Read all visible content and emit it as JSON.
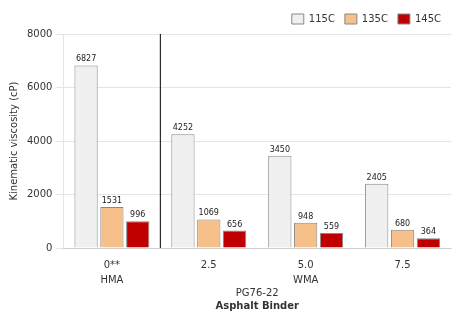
{
  "chart_data": {
    "type": "bar",
    "categories": [
      "0**",
      "2.5",
      "5.0",
      "7.5"
    ],
    "series": [
      {
        "name": "115C",
        "color": "#f0f0f0",
        "values": [
          6827,
          4252,
          3450,
          2405
        ]
      },
      {
        "name": "135C",
        "color": "#f5c08a",
        "values": [
          1531,
          1069,
          948,
          680
        ]
      },
      {
        "name": "145C",
        "color": "#c00000",
        "values": [
          996,
          656,
          559,
          364
        ]
      }
    ],
    "ylabel": "Kinematic viscosity (cP)",
    "xlabel": "Asphalt Binder",
    "annotations": [
      "HMA",
      "WMA",
      "PG76-22"
    ],
    "ylim": [
      0,
      8000
    ],
    "yticks": [
      0,
      2000,
      4000,
      6000,
      8000
    ],
    "grid": true,
    "legend": "upper right",
    "data_labels": true
  }
}
